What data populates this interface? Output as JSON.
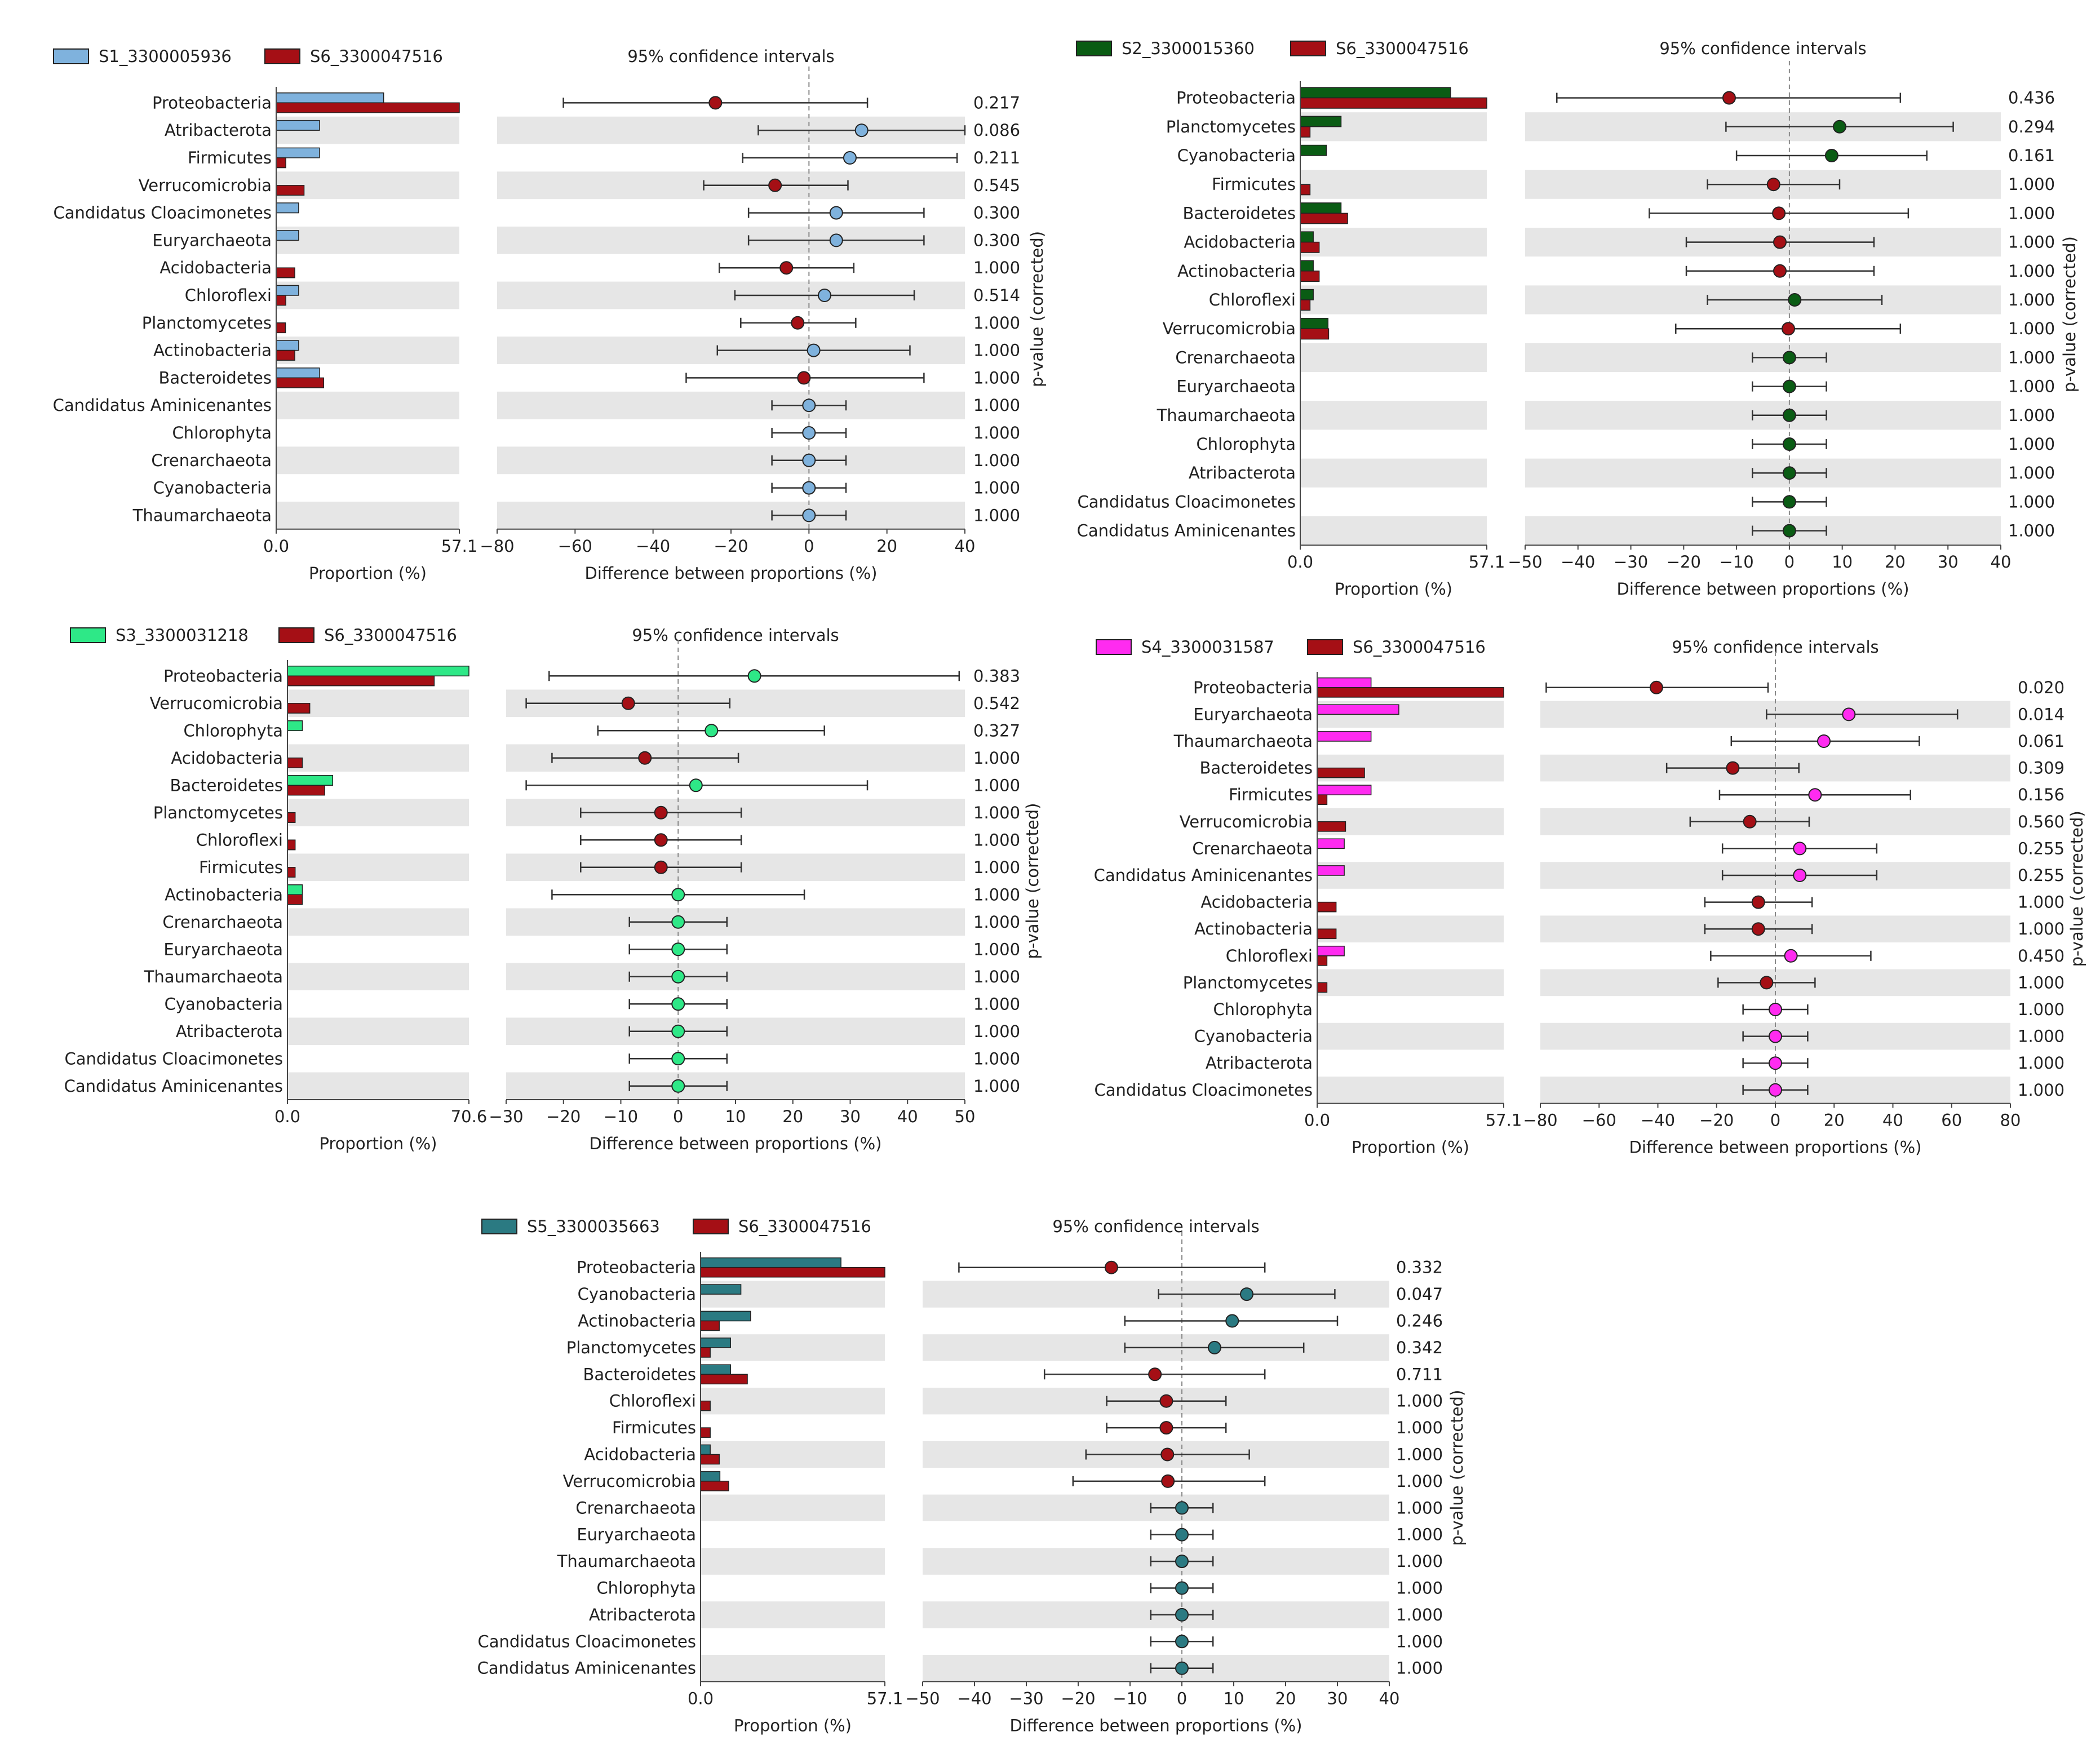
{
  "chart_data": [
    {
      "type": "extended_error_bar",
      "legend": [
        {
          "name": "S1_3300005936",
          "color": "#7fb2dd"
        },
        {
          "name": "S6_3300047516",
          "color": "#a50f15"
        }
      ],
      "ci_title": "95% confidence intervals",
      "prop_xlabel": "Proportion (%)",
      "diff_xlabel": "Difference between proportions (%)",
      "pval_label": "p-value (corrected)",
      "prop_ticks": [
        "0.0",
        "57.1"
      ],
      "prop_max": 57.1,
      "diff_ticks": [
        -80,
        -60,
        -40,
        -20,
        0,
        20,
        40
      ],
      "diff_range": [
        -80,
        40
      ],
      "rows": [
        {
          "label": "Proteobacteria",
          "a": 33.5,
          "b": 57.1,
          "diff": -24.0,
          "lo": -63.0,
          "hi": 15.0,
          "p": "0.217"
        },
        {
          "label": "Atribacterota",
          "a": 13.5,
          "b": 0,
          "diff": 13.5,
          "lo": -13.0,
          "hi": 40.0,
          "p": "0.086"
        },
        {
          "label": "Firmicutes",
          "a": 13.5,
          "b": 3.0,
          "diff": 10.5,
          "lo": -17.0,
          "hi": 38.0,
          "p": "0.211"
        },
        {
          "label": "Verrucomicrobia",
          "a": 0,
          "b": 8.7,
          "diff": -8.7,
          "lo": -27.0,
          "hi": 10.0,
          "p": "0.545"
        },
        {
          "label": "Candidatus Cloacimonetes",
          "a": 7.0,
          "b": 0,
          "diff": 7.0,
          "lo": -15.5,
          "hi": 29.5,
          "p": "0.300"
        },
        {
          "label": "Euryarchaeota",
          "a": 7.0,
          "b": 0,
          "diff": 7.0,
          "lo": -15.5,
          "hi": 29.5,
          "p": "0.300"
        },
        {
          "label": "Acidobacteria",
          "a": 0,
          "b": 5.8,
          "diff": -5.8,
          "lo": -23.0,
          "hi": 11.5,
          "p": "1.000"
        },
        {
          "label": "Chloroflexi",
          "a": 7.0,
          "b": 3.0,
          "diff": 4.0,
          "lo": -19.0,
          "hi": 27.0,
          "p": "0.514"
        },
        {
          "label": "Planctomycetes",
          "a": 0,
          "b": 2.9,
          "diff": -2.9,
          "lo": -17.5,
          "hi": 12.0,
          "p": "1.000"
        },
        {
          "label": "Actinobacteria",
          "a": 7.0,
          "b": 5.8,
          "diff": 1.2,
          "lo": -23.5,
          "hi": 25.9,
          "p": "1.000"
        },
        {
          "label": "Bacteroidetes",
          "a": 13.5,
          "b": 14.8,
          "diff": -1.3,
          "lo": -31.5,
          "hi": 29.5,
          "p": "1.000"
        },
        {
          "label": "Candidatus Aminicenantes",
          "a": 0,
          "b": 0,
          "diff": 0,
          "lo": -9.5,
          "hi": 9.5,
          "p": "1.000"
        },
        {
          "label": "Chlorophyta",
          "a": 0,
          "b": 0,
          "diff": 0,
          "lo": -9.5,
          "hi": 9.5,
          "p": "1.000"
        },
        {
          "label": "Crenarchaeota",
          "a": 0,
          "b": 0,
          "diff": 0,
          "lo": -9.5,
          "hi": 9.5,
          "p": "1.000"
        },
        {
          "label": "Cyanobacteria",
          "a": 0,
          "b": 0,
          "diff": 0,
          "lo": -9.5,
          "hi": 9.5,
          "p": "1.000"
        },
        {
          "label": "Thaumarchaeota",
          "a": 0,
          "b": 0,
          "diff": 0,
          "lo": -9.5,
          "hi": 9.5,
          "p": "1.000"
        }
      ]
    },
    {
      "type": "extended_error_bar",
      "legend": [
        {
          "name": "S2_3300015360",
          "color": "#0a5c14"
        },
        {
          "name": "S6_3300047516",
          "color": "#a50f15"
        }
      ],
      "ci_title": "95% confidence intervals",
      "prop_xlabel": "Proportion (%)",
      "diff_xlabel": "Difference between proportions (%)",
      "pval_label": "p-value (corrected)",
      "prop_ticks": [
        "0.0",
        "57.1"
      ],
      "prop_max": 57.1,
      "diff_ticks": [
        -50,
        -40,
        -30,
        -20,
        -10,
        0,
        10,
        20,
        30,
        40
      ],
      "diff_range": [
        -50,
        40
      ],
      "rows": [
        {
          "label": "Proteobacteria",
          "a": 46.0,
          "b": 57.1,
          "diff": -11.4,
          "lo": -44.0,
          "hi": 21.0,
          "p": "0.436"
        },
        {
          "label": "Planctomycetes",
          "a": 12.5,
          "b": 3.0,
          "diff": 9.5,
          "lo": -12.0,
          "hi": 31.0,
          "p": "0.294"
        },
        {
          "label": "Cyanobacteria",
          "a": 8.0,
          "b": 0,
          "diff": 8.0,
          "lo": -10.0,
          "hi": 26.0,
          "p": "0.161"
        },
        {
          "label": "Firmicutes",
          "a": 0,
          "b": 3.0,
          "diff": -3.0,
          "lo": -15.5,
          "hi": 9.5,
          "p": "1.000"
        },
        {
          "label": "Bacteroidetes",
          "a": 12.5,
          "b": 14.5,
          "diff": -2.0,
          "lo": -26.5,
          "hi": 22.5,
          "p": "1.000"
        },
        {
          "label": "Acidobacteria",
          "a": 4.0,
          "b": 5.8,
          "diff": -1.8,
          "lo": -19.5,
          "hi": 16.0,
          "p": "1.000"
        },
        {
          "label": "Actinobacteria",
          "a": 4.0,
          "b": 5.8,
          "diff": -1.8,
          "lo": -19.5,
          "hi": 16.0,
          "p": "1.000"
        },
        {
          "label": "Chloroflexi",
          "a": 4.0,
          "b": 3.0,
          "diff": 1.0,
          "lo": -15.5,
          "hi": 17.5,
          "p": "1.000"
        },
        {
          "label": "Verrucomicrobia",
          "a": 8.5,
          "b": 8.7,
          "diff": -0.2,
          "lo": -21.5,
          "hi": 21.0,
          "p": "1.000"
        },
        {
          "label": "Crenarchaeota",
          "a": 0,
          "b": 0,
          "diff": 0,
          "lo": -7.0,
          "hi": 7.0,
          "p": "1.000"
        },
        {
          "label": "Euryarchaeota",
          "a": 0,
          "b": 0,
          "diff": 0,
          "lo": -7.0,
          "hi": 7.0,
          "p": "1.000"
        },
        {
          "label": "Thaumarchaeota",
          "a": 0,
          "b": 0,
          "diff": 0,
          "lo": -7.0,
          "hi": 7.0,
          "p": "1.000"
        },
        {
          "label": "Chlorophyta",
          "a": 0,
          "b": 0,
          "diff": 0,
          "lo": -7.0,
          "hi": 7.0,
          "p": "1.000"
        },
        {
          "label": "Atribacterota",
          "a": 0,
          "b": 0,
          "diff": 0,
          "lo": -7.0,
          "hi": 7.0,
          "p": "1.000"
        },
        {
          "label": "Candidatus Cloacimonetes",
          "a": 0,
          "b": 0,
          "diff": 0,
          "lo": -7.0,
          "hi": 7.0,
          "p": "1.000"
        },
        {
          "label": "Candidatus Aminicenantes",
          "a": 0,
          "b": 0,
          "diff": 0,
          "lo": -7.0,
          "hi": 7.0,
          "p": "1.000"
        }
      ]
    },
    {
      "type": "extended_error_bar",
      "legend": [
        {
          "name": "S3_3300031218",
          "color": "#2ee887"
        },
        {
          "name": "S6_3300047516",
          "color": "#a50f15"
        }
      ],
      "ci_title": "95% confidence intervals",
      "prop_xlabel": "Proportion (%)",
      "diff_xlabel": "Difference between proportions (%)",
      "pval_label": "p-value (corrected)",
      "prop_ticks": [
        "0.0",
        "70.6"
      ],
      "prop_max": 70.6,
      "diff_ticks": [
        -30,
        -20,
        -10,
        0,
        10,
        20,
        30,
        40,
        50
      ],
      "diff_range": [
        -30,
        50
      ],
      "rows": [
        {
          "label": "Proteobacteria",
          "a": 70.6,
          "b": 57.1,
          "diff": 13.3,
          "lo": -22.5,
          "hi": 49.0,
          "p": "0.383"
        },
        {
          "label": "Verrucomicrobia",
          "a": 0,
          "b": 8.7,
          "diff": -8.7,
          "lo": -26.5,
          "hi": 9.0,
          "p": "0.542"
        },
        {
          "label": "Chlorophyta",
          "a": 5.8,
          "b": 0,
          "diff": 5.8,
          "lo": -14.0,
          "hi": 25.5,
          "p": "0.327"
        },
        {
          "label": "Acidobacteria",
          "a": 0,
          "b": 5.8,
          "diff": -5.8,
          "lo": -22.0,
          "hi": 10.5,
          "p": "1.000"
        },
        {
          "label": "Bacteroidetes",
          "a": 17.6,
          "b": 14.5,
          "diff": 3.1,
          "lo": -26.5,
          "hi": 33.0,
          "p": "1.000"
        },
        {
          "label": "Planctomycetes",
          "a": 0,
          "b": 3.0,
          "diff": -3.0,
          "lo": -17.0,
          "hi": 11.0,
          "p": "1.000"
        },
        {
          "label": "Chloroflexi",
          "a": 0,
          "b": 3.0,
          "diff": -3.0,
          "lo": -17.0,
          "hi": 11.0,
          "p": "1.000"
        },
        {
          "label": "Firmicutes",
          "a": 0,
          "b": 3.0,
          "diff": -3.0,
          "lo": -17.0,
          "hi": 11.0,
          "p": "1.000"
        },
        {
          "label": "Actinobacteria",
          "a": 5.8,
          "b": 5.8,
          "diff": 0,
          "lo": -22.0,
          "hi": 22.0,
          "p": "1.000"
        },
        {
          "label": "Crenarchaeota",
          "a": 0,
          "b": 0,
          "diff": 0,
          "lo": -8.5,
          "hi": 8.5,
          "p": "1.000"
        },
        {
          "label": "Euryarchaeota",
          "a": 0,
          "b": 0,
          "diff": 0,
          "lo": -8.5,
          "hi": 8.5,
          "p": "1.000"
        },
        {
          "label": "Thaumarchaeota",
          "a": 0,
          "b": 0,
          "diff": 0,
          "lo": -8.5,
          "hi": 8.5,
          "p": "1.000"
        },
        {
          "label": "Cyanobacteria",
          "a": 0,
          "b": 0,
          "diff": 0,
          "lo": -8.5,
          "hi": 8.5,
          "p": "1.000"
        },
        {
          "label": "Atribacterota",
          "a": 0,
          "b": 0,
          "diff": 0,
          "lo": -8.5,
          "hi": 8.5,
          "p": "1.000"
        },
        {
          "label": "Candidatus Cloacimonetes",
          "a": 0,
          "b": 0,
          "diff": 0,
          "lo": -8.5,
          "hi": 8.5,
          "p": "1.000"
        },
        {
          "label": "Candidatus Aminicenantes",
          "a": 0,
          "b": 0,
          "diff": 0,
          "lo": -8.5,
          "hi": 8.5,
          "p": "1.000"
        }
      ]
    },
    {
      "type": "extended_error_bar",
      "legend": [
        {
          "name": "S4_3300031587",
          "color": "#ff2bf0"
        },
        {
          "name": "S6_3300047516",
          "color": "#a50f15"
        }
      ],
      "ci_title": "95% confidence intervals",
      "prop_xlabel": "Proportion (%)",
      "diff_xlabel": "Difference between proportions (%)",
      "pval_label": "p-value (corrected)",
      "prop_ticks": [
        "0.0",
        "57.1"
      ],
      "prop_max": 57.1,
      "diff_ticks": [
        -80,
        -60,
        -40,
        -20,
        0,
        20,
        40,
        60,
        80
      ],
      "diff_range": [
        -80,
        80
      ],
      "rows": [
        {
          "label": "Proteobacteria",
          "a": 16.5,
          "b": 57.1,
          "diff": -40.5,
          "lo": -78.0,
          "hi": -2.5,
          "p": "0.020"
        },
        {
          "label": "Euryarchaeota",
          "a": 25.0,
          "b": 0,
          "diff": 25.0,
          "lo": -3.0,
          "hi": 62.0,
          "p": "0.014"
        },
        {
          "label": "Thaumarchaeota",
          "a": 16.5,
          "b": 0,
          "diff": 16.5,
          "lo": -15.0,
          "hi": 49.0,
          "p": "0.061"
        },
        {
          "label": "Bacteroidetes",
          "a": 0,
          "b": 14.5,
          "diff": -14.5,
          "lo": -37.0,
          "hi": 8.0,
          "p": "0.309"
        },
        {
          "label": "Firmicutes",
          "a": 16.5,
          "b": 3.0,
          "diff": 13.5,
          "lo": -19.0,
          "hi": 46.0,
          "p": "0.156"
        },
        {
          "label": "Verrucomicrobia",
          "a": 0,
          "b": 8.7,
          "diff": -8.7,
          "lo": -29.0,
          "hi": 11.5,
          "p": "0.560"
        },
        {
          "label": "Crenarchaeota",
          "a": 8.3,
          "b": 0,
          "diff": 8.3,
          "lo": -18.0,
          "hi": 34.5,
          "p": "0.255"
        },
        {
          "label": "Candidatus Aminicenantes",
          "a": 8.3,
          "b": 0,
          "diff": 8.3,
          "lo": -18.0,
          "hi": 34.5,
          "p": "0.255"
        },
        {
          "label": "Acidobacteria",
          "a": 0,
          "b": 5.8,
          "diff": -5.8,
          "lo": -24.0,
          "hi": 12.5,
          "p": "1.000"
        },
        {
          "label": "Actinobacteria",
          "a": 0,
          "b": 5.8,
          "diff": -5.8,
          "lo": -24.0,
          "hi": 12.5,
          "p": "1.000"
        },
        {
          "label": "Chloroflexi",
          "a": 8.3,
          "b": 3.0,
          "diff": 5.3,
          "lo": -22.0,
          "hi": 32.5,
          "p": "0.450"
        },
        {
          "label": "Planctomycetes",
          "a": 0,
          "b": 3.0,
          "diff": -3.0,
          "lo": -19.5,
          "hi": 13.5,
          "p": "1.000"
        },
        {
          "label": "Chlorophyta",
          "a": 0,
          "b": 0,
          "diff": 0,
          "lo": -11.0,
          "hi": 11.0,
          "p": "1.000"
        },
        {
          "label": "Cyanobacteria",
          "a": 0,
          "b": 0,
          "diff": 0,
          "lo": -11.0,
          "hi": 11.0,
          "p": "1.000"
        },
        {
          "label": "Atribacterota",
          "a": 0,
          "b": 0,
          "diff": 0,
          "lo": -11.0,
          "hi": 11.0,
          "p": "1.000"
        },
        {
          "label": "Candidatus Cloacimonetes",
          "a": 0,
          "b": 0,
          "diff": 0,
          "lo": -11.0,
          "hi": 11.0,
          "p": "1.000"
        }
      ]
    },
    {
      "type": "extended_error_bar",
      "legend": [
        {
          "name": "S5_3300035663",
          "color": "#2b7a82"
        },
        {
          "name": "S6_3300047516",
          "color": "#a50f15"
        }
      ],
      "ci_title": "95% confidence intervals",
      "prop_xlabel": "Proportion (%)",
      "diff_xlabel": "Difference between proportions (%)",
      "pval_label": "p-value (corrected)",
      "prop_ticks": [
        "0.0",
        "57.1"
      ],
      "prop_max": 57.1,
      "diff_ticks": [
        -50,
        -40,
        -30,
        -20,
        -10,
        0,
        10,
        20,
        30,
        40
      ],
      "diff_range": [
        -50,
        40
      ],
      "rows": [
        {
          "label": "Proteobacteria",
          "a": 43.5,
          "b": 57.1,
          "diff": -13.6,
          "lo": -43.0,
          "hi": 16.0,
          "p": "0.332"
        },
        {
          "label": "Cyanobacteria",
          "a": 12.5,
          "b": 0,
          "diff": 12.5,
          "lo": -4.5,
          "hi": 29.5,
          "p": "0.047"
        },
        {
          "label": "Actinobacteria",
          "a": 15.5,
          "b": 5.8,
          "diff": 9.7,
          "lo": -11.0,
          "hi": 30.0,
          "p": "0.246"
        },
        {
          "label": "Planctomycetes",
          "a": 9.3,
          "b": 3.0,
          "diff": 6.3,
          "lo": -11.0,
          "hi": 23.5,
          "p": "0.342"
        },
        {
          "label": "Bacteroidetes",
          "a": 9.3,
          "b": 14.5,
          "diff": -5.2,
          "lo": -26.5,
          "hi": 16.0,
          "p": "0.711"
        },
        {
          "label": "Chloroflexi",
          "a": 0,
          "b": 3.0,
          "diff": -3.0,
          "lo": -14.5,
          "hi": 8.5,
          "p": "1.000"
        },
        {
          "label": "Firmicutes",
          "a": 0,
          "b": 3.0,
          "diff": -3.0,
          "lo": -14.5,
          "hi": 8.5,
          "p": "1.000"
        },
        {
          "label": "Acidobacteria",
          "a": 3.0,
          "b": 5.8,
          "diff": -2.8,
          "lo": -18.5,
          "hi": 13.0,
          "p": "1.000"
        },
        {
          "label": "Verrucomicrobia",
          "a": 6.0,
          "b": 8.7,
          "diff": -2.7,
          "lo": -21.0,
          "hi": 16.0,
          "p": "1.000"
        },
        {
          "label": "Crenarchaeota",
          "a": 0,
          "b": 0,
          "diff": 0,
          "lo": -6.0,
          "hi": 6.0,
          "p": "1.000"
        },
        {
          "label": "Euryarchaeota",
          "a": 0,
          "b": 0,
          "diff": 0,
          "lo": -6.0,
          "hi": 6.0,
          "p": "1.000"
        },
        {
          "label": "Thaumarchaeota",
          "a": 0,
          "b": 0,
          "diff": 0,
          "lo": -6.0,
          "hi": 6.0,
          "p": "1.000"
        },
        {
          "label": "Chlorophyta",
          "a": 0,
          "b": 0,
          "diff": 0,
          "lo": -6.0,
          "hi": 6.0,
          "p": "1.000"
        },
        {
          "label": "Atribacterota",
          "a": 0,
          "b": 0,
          "diff": 0,
          "lo": -6.0,
          "hi": 6.0,
          "p": "1.000"
        },
        {
          "label": "Candidatus Cloacimonetes",
          "a": 0,
          "b": 0,
          "diff": 0,
          "lo": -6.0,
          "hi": 6.0,
          "p": "1.000"
        },
        {
          "label": "Candidatus Aminicenantes",
          "a": 0,
          "b": 0,
          "diff": 0,
          "lo": -6.0,
          "hi": 6.0,
          "p": "1.000"
        }
      ]
    }
  ]
}
